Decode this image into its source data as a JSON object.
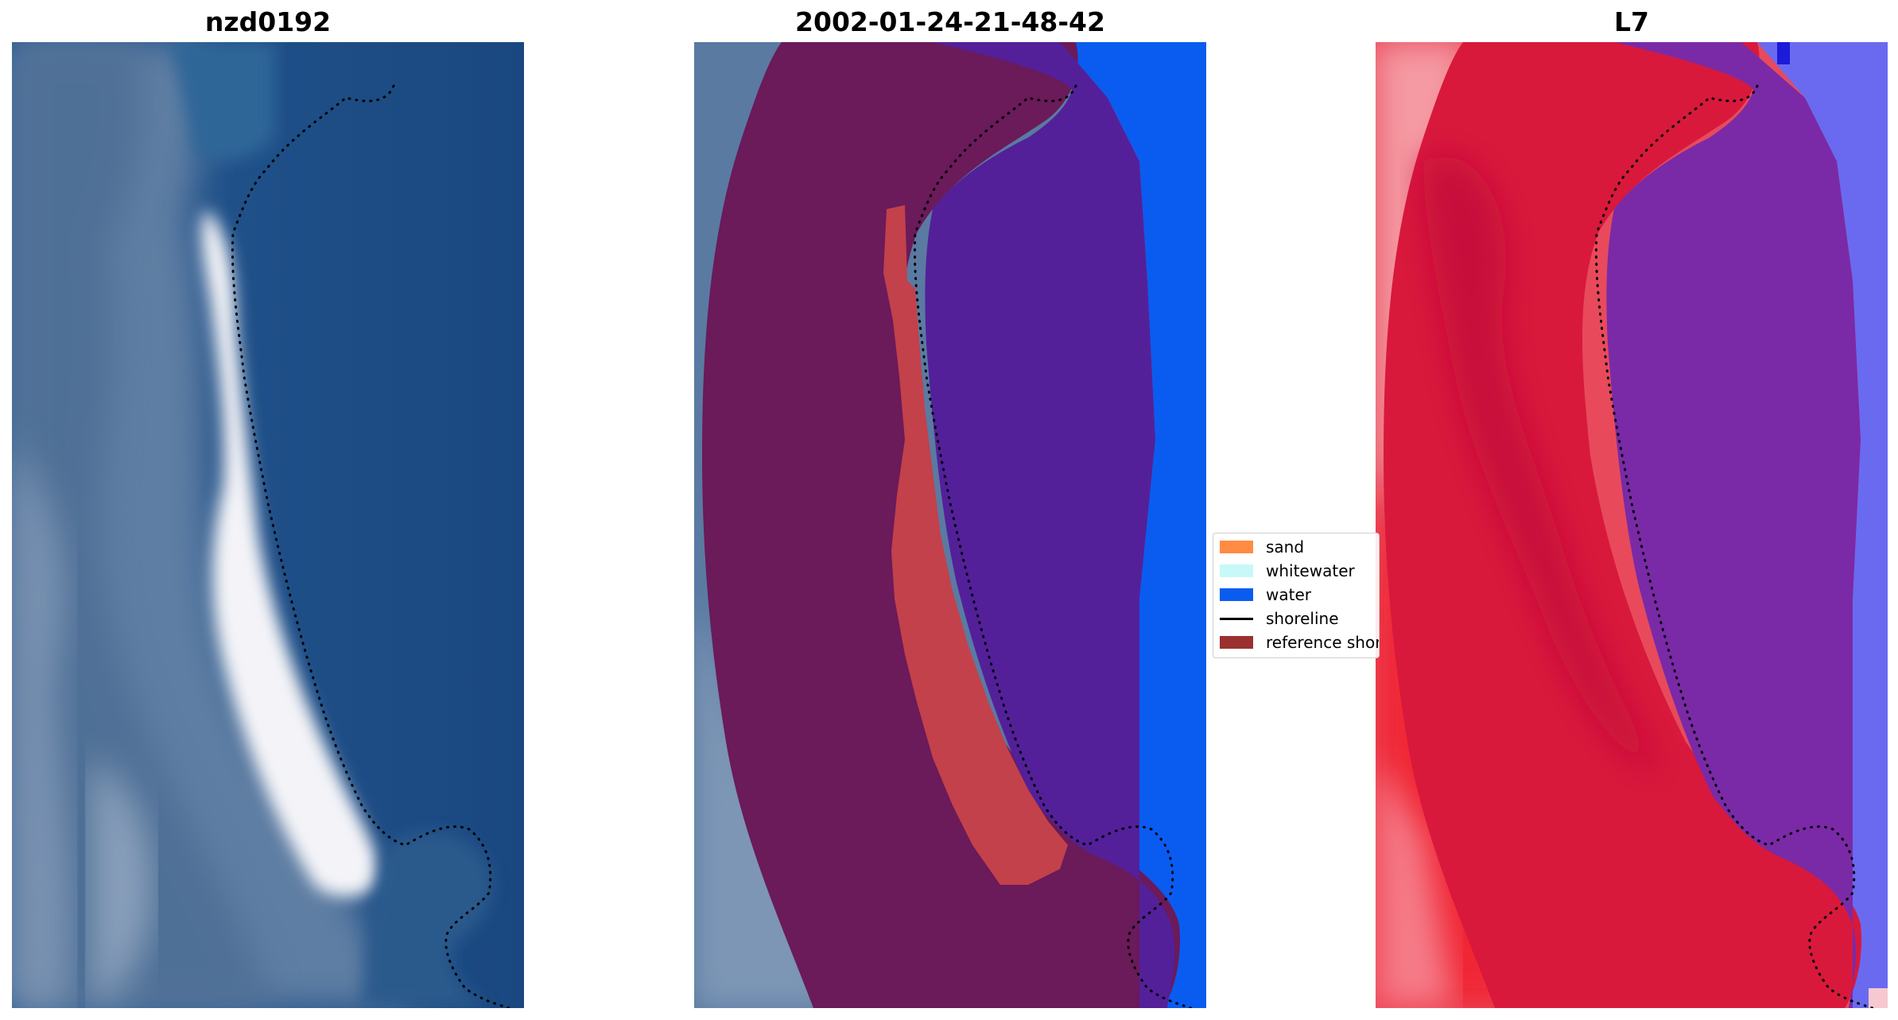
{
  "panels": [
    {
      "title": "nzd0192"
    },
    {
      "title": "2002-01-24-21-48-42"
    },
    {
      "title": "L7"
    }
  ],
  "legend": {
    "items": [
      {
        "label": "sand",
        "color": "#ff8c42"
      },
      {
        "label": "whitewater",
        "color": "#c8f8f8"
      },
      {
        "label": "water",
        "color": "#0a5cf0"
      },
      {
        "label": "shoreline",
        "color": "#000000"
      },
      {
        "label": "reference shoreline buffer",
        "color": "#9b3030"
      }
    ]
  },
  "colors": {
    "ocean": "#1d4d86",
    "land_blue": "#5c7fa6",
    "beach": "#f2f2f6",
    "buffer": "#6b1a5a",
    "class_water": "#53209a",
    "class_sand": "#c3414a",
    "index_red": "#d8193c",
    "index_purple": "#7a2aa6",
    "index_blue": "#6a6af0"
  }
}
